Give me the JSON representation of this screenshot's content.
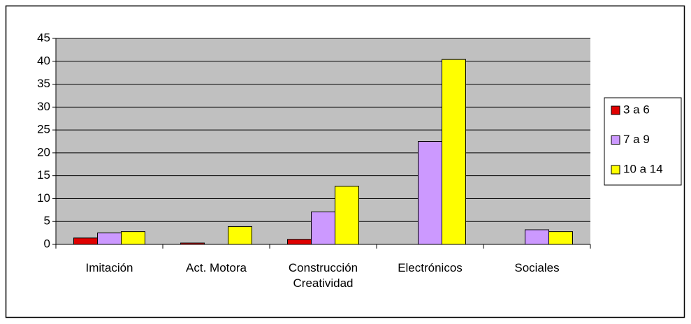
{
  "chart_data": {
    "type": "bar",
    "categories": [
      "Imitación",
      "Act. Motora",
      "Construcción Creatividad",
      "Electrónicos",
      "Sociales"
    ],
    "series": [
      {
        "name": "3 a 6",
        "color": "#e00000",
        "values": [
          1.4,
          0.3,
          1.1,
          0,
          0
        ]
      },
      {
        "name": "7 a 9",
        "color": "#cc99ff",
        "values": [
          2.5,
          0,
          7.1,
          22.5,
          3.2
        ]
      },
      {
        "name": "10 a 14",
        "color": "#ffff00",
        "values": [
          2.8,
          3.9,
          12.7,
          40.4,
          2.8
        ]
      }
    ],
    "ylim": [
      0,
      45
    ],
    "yticks": [
      0,
      5,
      10,
      15,
      20,
      25,
      30,
      35,
      40,
      45
    ],
    "grid": true,
    "legend": "right"
  }
}
